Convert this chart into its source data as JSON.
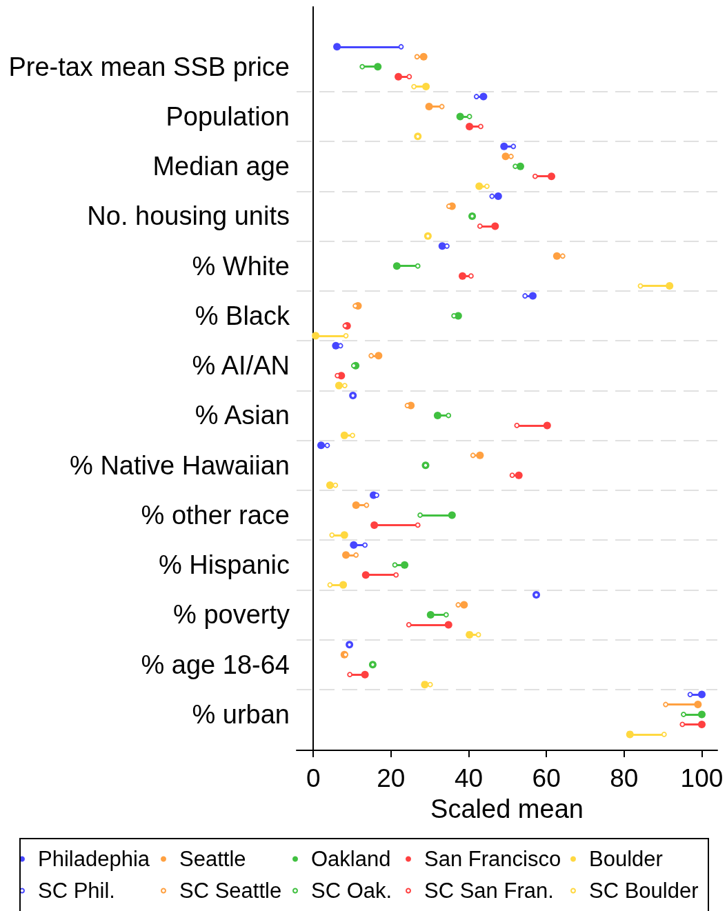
{
  "chart_data": {
    "type": "scatter",
    "orientation": "horizontal",
    "xlabel": "Scaled mean",
    "categories": [
      "Pre-tax mean SSB price",
      "Population",
      "Median age",
      "No. housing units",
      "% White",
      "% Black",
      "% AI/AN",
      "% Asian",
      "% Native Hawaiian",
      "% other race",
      "% Hispanic",
      "% poverty",
      "% age 18-64",
      "% urban"
    ],
    "series": [
      {
        "name": "Philadephia",
        "color": "#4646ff",
        "values": [
          6.1,
          43.8,
          49.1,
          47.6,
          33.2,
          56.5,
          5.8,
          10.2,
          2.0,
          15.5,
          10.4,
          57.4,
          9.3,
          100
        ]
      },
      {
        "name": "Seattle",
        "color": "#ffa040",
        "values": [
          28.4,
          29.8,
          49.5,
          35.7,
          62.7,
          11.5,
          16.8,
          25.1,
          42.9,
          11.0,
          8.4,
          38.8,
          8.0,
          99.0
        ]
      },
      {
        "name": "Oakland",
        "color": "#40c040",
        "values": [
          16.6,
          37.8,
          53.3,
          40.9,
          21.5,
          37.3,
          10.9,
          32.0,
          28.9,
          35.7,
          23.5,
          30.2,
          15.3,
          100
        ]
      },
      {
        "name": "San Francisco",
        "color": "#ff4040",
        "values": [
          21.9,
          40.2,
          61.3,
          46.8,
          38.4,
          8.7,
          7.2,
          60.2,
          52.9,
          15.7,
          13.5,
          34.8,
          13.3,
          100
        ]
      },
      {
        "name": "Boulder",
        "color": "#ffd840",
        "values": [
          29.0,
          26.9,
          42.7,
          29.5,
          91.7,
          0.6,
          6.6,
          8.0,
          4.3,
          8.0,
          7.7,
          40.2,
          28.7,
          81.5
        ]
      },
      {
        "name": "SC Phil.",
        "color": "#4646ff",
        "values": [
          22.6,
          42.0,
          51.5,
          46.0,
          34.4,
          54.5,
          7.0,
          10.2,
          3.6,
          16.3,
          13.3,
          57.4,
          9.3,
          97.0
        ]
      },
      {
        "name": "SC Seattle",
        "color": "#ffa040",
        "values": [
          26.7,
          33.1,
          50.9,
          34.9,
          64.2,
          10.8,
          14.9,
          24.2,
          41.1,
          13.7,
          11.0,
          37.3,
          8.3,
          90.7
        ]
      },
      {
        "name": "SC Oak.",
        "color": "#40c040",
        "values": [
          12.6,
          40.2,
          52.0,
          40.9,
          26.9,
          36.2,
          10.4,
          34.8,
          28.9,
          27.5,
          21.0,
          34.2,
          15.3,
          95.3
        ]
      },
      {
        "name": "SC San Fran.",
        "color": "#ff4040",
        "values": [
          24.7,
          43.1,
          57.1,
          42.9,
          40.6,
          8.2,
          6.2,
          52.4,
          51.2,
          26.9,
          21.3,
          24.6,
          9.4,
          95.0
        ]
      },
      {
        "name": "SC Boulder",
        "color": "#ffd840",
        "values": [
          25.9,
          26.9,
          44.7,
          29.5,
          84.2,
          8.4,
          8.1,
          10.1,
          5.7,
          4.8,
          4.3,
          42.5,
          30.1,
          90.3
        ]
      }
    ],
    "xlim": [
      -4.3,
      104
    ],
    "xticks": [
      0,
      20,
      40,
      60,
      80,
      100
    ],
    "grid": "y",
    "legend": "bottom",
    "marker": "circle"
  }
}
